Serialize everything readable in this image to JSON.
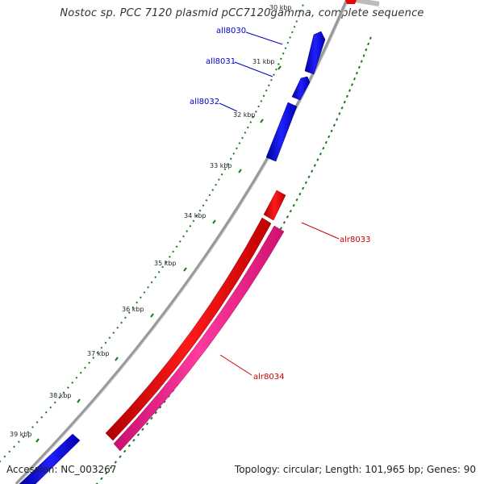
{
  "title": "Nostoc sp. PCC 7120 plasmid pCC7120gamma, complete sequence",
  "accession": "Accession: NC_003267",
  "summary": "Topology: circular; Length: 101,965 bp; Genes: 90",
  "tick_labels": [
    "30 kbp",
    "31 kbp",
    "32 kbp",
    "33 kbp",
    "34 kbp",
    "35 kbp",
    "36 kbp",
    "37 kbp",
    "38 kbp",
    "39 kbp"
  ],
  "genes": [
    {
      "name": "all8030",
      "strand": "reverse",
      "color": "#0000ee"
    },
    {
      "name": "all8031",
      "strand": "reverse",
      "color": "#0000ee"
    },
    {
      "name": "all8032",
      "strand": "reverse",
      "color": "#0000ee"
    },
    {
      "name": "alr8033",
      "strand": "forward",
      "color": "#ee0000"
    },
    {
      "name": "alr8034",
      "strand": "forward",
      "color": "#ff1493"
    }
  ],
  "colors": {
    "reverse_gene": "#0000ee",
    "forward_gene": "#ee0000",
    "forward_gene_alt": "#ff1493",
    "backbone": "#888888",
    "tick_mark": "#1a7a1a",
    "label_text": "#222222"
  }
}
